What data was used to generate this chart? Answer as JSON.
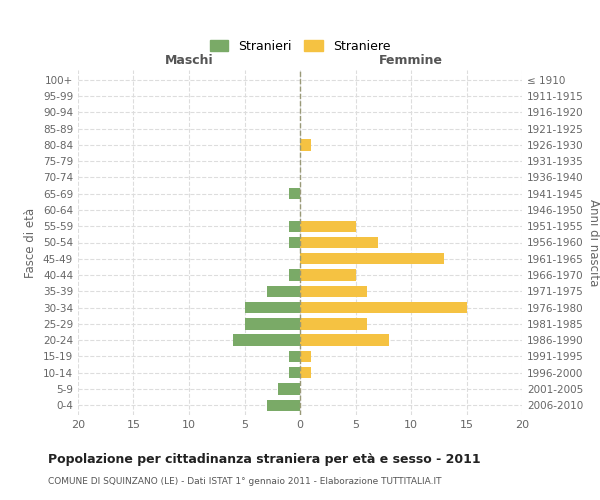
{
  "age_groups": [
    "100+",
    "95-99",
    "90-94",
    "85-89",
    "80-84",
    "75-79",
    "70-74",
    "65-69",
    "60-64",
    "55-59",
    "50-54",
    "45-49",
    "40-44",
    "35-39",
    "30-34",
    "25-29",
    "20-24",
    "15-19",
    "10-14",
    "5-9",
    "0-4"
  ],
  "birth_years": [
    "≤ 1910",
    "1911-1915",
    "1916-1920",
    "1921-1925",
    "1926-1930",
    "1931-1935",
    "1936-1940",
    "1941-1945",
    "1946-1950",
    "1951-1955",
    "1956-1960",
    "1961-1965",
    "1966-1970",
    "1971-1975",
    "1976-1980",
    "1981-1985",
    "1986-1990",
    "1991-1995",
    "1996-2000",
    "2001-2005",
    "2006-2010"
  ],
  "maschi": [
    0,
    0,
    0,
    0,
    0,
    0,
    0,
    1,
    0,
    1,
    1,
    0,
    1,
    3,
    5,
    5,
    6,
    1,
    1,
    2,
    3
  ],
  "femmine": [
    0,
    0,
    0,
    0,
    1,
    0,
    0,
    0,
    0,
    5,
    7,
    13,
    5,
    6,
    15,
    6,
    8,
    1,
    1,
    0,
    0
  ],
  "color_maschi": "#7aaa67",
  "color_femmine": "#f5c242",
  "title": "Popolazione per cittadinanza straniera per età e sesso - 2011",
  "subtitle": "COMUNE DI SQUINZANO (LE) - Dati ISTAT 1° gennaio 2011 - Elaborazione TUTTITALIA.IT",
  "xlabel_left": "Maschi",
  "xlabel_right": "Femmine",
  "ylabel_left": "Fasce di età",
  "ylabel_right": "Anni di nascita",
  "legend_maschi": "Stranieri",
  "legend_femmine": "Straniere",
  "xlim": 20,
  "bg_color": "#ffffff",
  "grid_color": "#dddddd"
}
